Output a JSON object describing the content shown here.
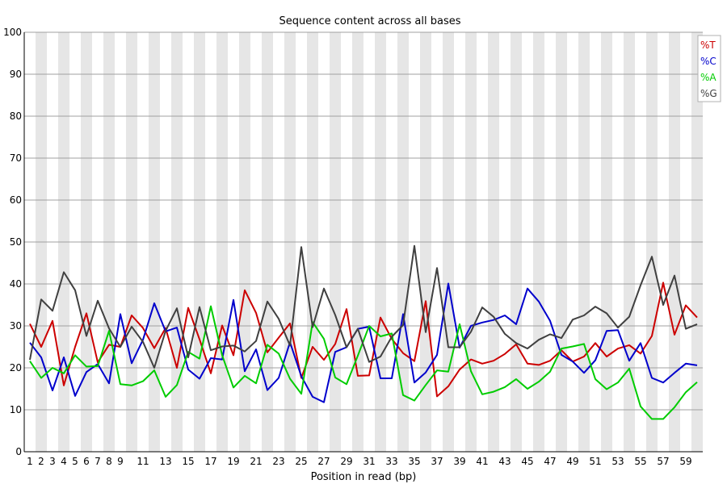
{
  "chart_data": {
    "type": "line",
    "title": "Sequence content across all bases",
    "xlabel": "Position in read (bp)",
    "ylabel": "",
    "ylim": [
      0,
      100
    ],
    "yticks": [
      0,
      10,
      20,
      30,
      40,
      50,
      60,
      70,
      80,
      90,
      100
    ],
    "x": [
      1,
      2,
      3,
      4,
      5,
      6,
      7,
      8,
      9,
      10,
      11,
      12,
      13,
      14,
      15,
      16,
      17,
      18,
      19,
      20,
      21,
      22,
      23,
      24,
      25,
      26,
      27,
      28,
      29,
      30,
      31,
      32,
      33,
      34,
      35,
      36,
      37,
      38,
      39,
      40,
      41,
      42,
      43,
      44,
      45,
      46,
      47,
      48,
      49,
      50,
      51,
      52,
      53,
      54,
      55,
      56,
      57,
      58,
      59,
      60
    ],
    "xtick_labels": [
      "1",
      "2",
      "3",
      "4",
      "5",
      "6",
      "7",
      "8",
      "9",
      "11",
      "13",
      "15",
      "17",
      "19",
      "21",
      "23",
      "25",
      "27",
      "29",
      "31",
      "33",
      "35",
      "37",
      "39",
      "41",
      "43",
      "45",
      "47",
      "49",
      "51",
      "53",
      "55",
      "57",
      "59"
    ],
    "grid": "alternating vertical bands",
    "legend_position": "top-right",
    "series": [
      {
        "name": "%T",
        "color": "#cc0000",
        "values": [
          30.5,
          25,
          31.2,
          15.8,
          25,
          33,
          21.3,
          25.5,
          25,
          32.5,
          29.5,
          24.7,
          29.5,
          20,
          34.3,
          26.8,
          18.7,
          30.1,
          23,
          38.5,
          33.1,
          23.7,
          27.2,
          30.6,
          17.6,
          25,
          21.9,
          25.7,
          34,
          18.1,
          18.2,
          32,
          26.9,
          23.5,
          21.6,
          35.9,
          13.2,
          15.6,
          19.6,
          22,
          21,
          21.7,
          23.3,
          25.6,
          21,
          20.7,
          21.7,
          24.2,
          21.5,
          22.7,
          25.9,
          22.7,
          24.6,
          25.4,
          23.4,
          27.6,
          40.3,
          27.9,
          34.9,
          32
        ]
      },
      {
        "name": "%C",
        "color": "#0000cc",
        "values": [
          26,
          22.5,
          14.6,
          22.5,
          13.3,
          19,
          20.9,
          16.3,
          32.8,
          21.1,
          26.7,
          35.4,
          28.7,
          29.6,
          19.6,
          17.4,
          22.3,
          22,
          36.2,
          19.2,
          24.4,
          14.7,
          17.6,
          26.1,
          18,
          13.1,
          11.8,
          23.8,
          24.9,
          29.3,
          29.8,
          17.5,
          17.5,
          32.8,
          16.5,
          18.9,
          23.1,
          40.1,
          24.8,
          30,
          30.8,
          31.4,
          32.5,
          30.4,
          38.9,
          35.8,
          31.2,
          23.1,
          21.5,
          18.8,
          21.8,
          28.8,
          29,
          21.7,
          25.9,
          17.6,
          16.5,
          18.8,
          21,
          20.6
        ]
      },
      {
        "name": "%A",
        "color": "#00cc00",
        "values": [
          21.6,
          17.6,
          20,
          18.7,
          23,
          20.3,
          20.4,
          28.8,
          16.1,
          15.8,
          16.8,
          19.4,
          13.1,
          15.9,
          23.8,
          22.2,
          34.7,
          23,
          15.3,
          18.1,
          16.3,
          25.5,
          23.4,
          17.4,
          13.8,
          30.9,
          26.9,
          17.7,
          16.1,
          22.9,
          30,
          27.5,
          28.2,
          13.5,
          12.2,
          15.9,
          19.4,
          19.1,
          30.4,
          19.2,
          13.7,
          14.3,
          15.4,
          17.3,
          15,
          16.7,
          19.1,
          24.6,
          25.1,
          25.7,
          17.3,
          14.9,
          16.5,
          19.8,
          10.8,
          7.8,
          7.8,
          10.6,
          14.2,
          16.6
        ]
      },
      {
        "name": "%G",
        "color": "#404040",
        "values": [
          21.9,
          36.3,
          33.6,
          42.8,
          38.5,
          27.6,
          36,
          29.4,
          25,
          29.8,
          26.2,
          20,
          28.8,
          34.2,
          22.5,
          34.5,
          24.2,
          25.1,
          25.3,
          23.9,
          26.4,
          35.8,
          31.7,
          25.3,
          48.8,
          29.7,
          38.9,
          32.6,
          24.9,
          29.3,
          21.4,
          22.7,
          27.4,
          30.2,
          49.1,
          28.5,
          43.8,
          24.9,
          24.9,
          28.6,
          34.4,
          32.2,
          28.1,
          25.9,
          24.6,
          26.7,
          28,
          27.1,
          31.5,
          32.5,
          34.6,
          33,
          29.6,
          32.2,
          39.7,
          46.5,
          35,
          42,
          29.3,
          30.4
        ]
      }
    ]
  }
}
